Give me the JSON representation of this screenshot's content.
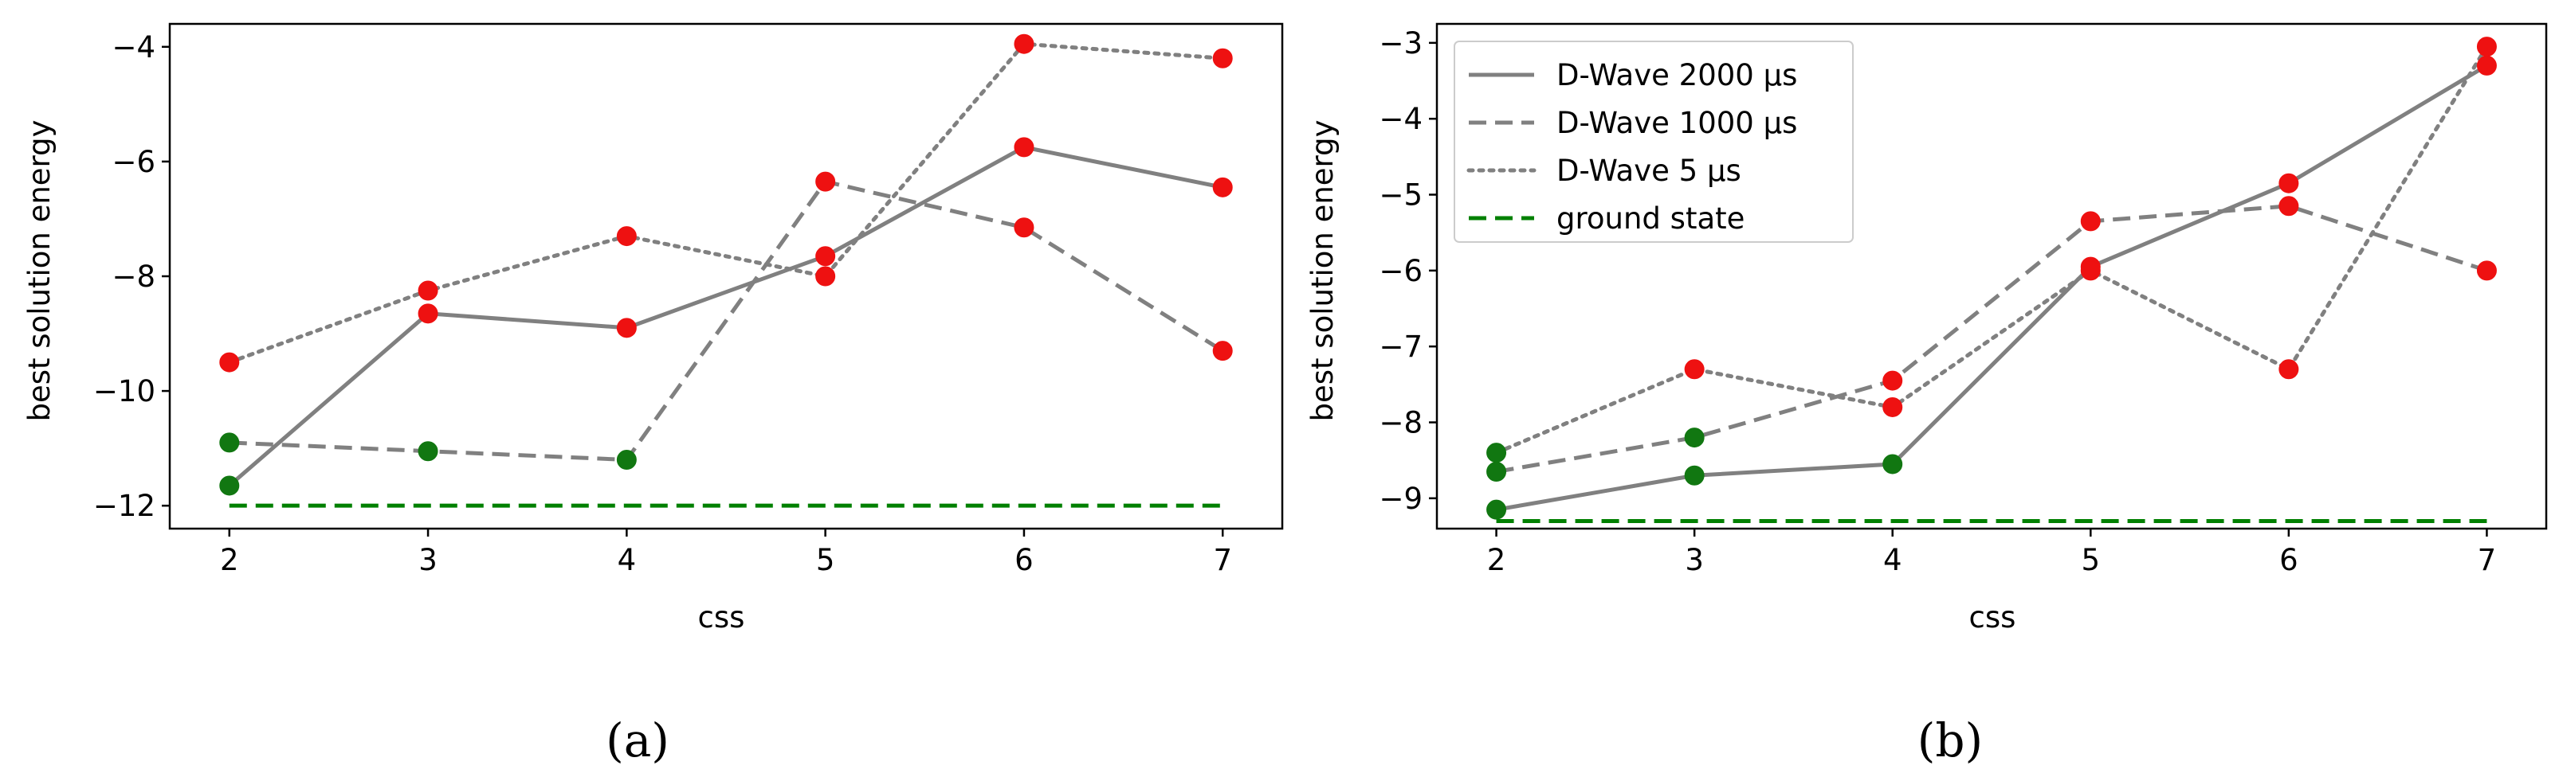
{
  "chart_data": [
    {
      "id": "a",
      "type": "line",
      "caption": "(a)",
      "xlabel": "css",
      "ylabel": "best solution energy",
      "x": [
        2,
        3,
        4,
        5,
        6,
        7
      ],
      "xlim": [
        1.7,
        7.3
      ],
      "ylim": [
        -12.4,
        -3.6
      ],
      "xticks": [
        2,
        3,
        4,
        5,
        6,
        7
      ],
      "yticks": [
        -12,
        -10,
        -8,
        -6,
        -4
      ],
      "ground_state": -12,
      "series": [
        {
          "name": "D-Wave 2000 µs",
          "style": "solid",
          "values": [
            -11.65,
            -8.65,
            -8.9,
            -7.65,
            -5.75,
            -6.45
          ],
          "markers": [
            "green",
            "red",
            "red",
            "red",
            "red",
            "red"
          ]
        },
        {
          "name": "D-Wave 1000 µs",
          "style": "dashed",
          "values": [
            -10.9,
            -11.05,
            -11.2,
            -6.35,
            -7.15,
            -9.3
          ],
          "markers": [
            "green",
            "green",
            "green",
            "red",
            "red",
            "red"
          ]
        },
        {
          "name": "D-Wave 5 µs",
          "style": "dotted",
          "values": [
            -9.5,
            -8.25,
            -7.3,
            -8.0,
            -3.95,
            -4.2
          ],
          "markers": [
            "red",
            "red",
            "red",
            "red",
            "red",
            "red"
          ]
        }
      ]
    },
    {
      "id": "b",
      "type": "line",
      "caption": "(b)",
      "xlabel": "css",
      "ylabel": "best solution energy",
      "x": [
        2,
        3,
        4,
        5,
        6,
        7
      ],
      "xlim": [
        1.7,
        7.3
      ],
      "ylim": [
        -9.4,
        -2.75
      ],
      "xticks": [
        2,
        3,
        4,
        5,
        6,
        7
      ],
      "yticks": [
        -9,
        -8,
        -7,
        -6,
        -5,
        -4,
        -3
      ],
      "ground_state": -9.3,
      "legend": {
        "position": "top-left",
        "entries": [
          {
            "label": "D-Wave 2000 µs",
            "style": "solid",
            "color": "#808080"
          },
          {
            "label": "D-Wave 1000 µs",
            "style": "dashed",
            "color": "#808080"
          },
          {
            "label": "D-Wave 5 µs",
            "style": "dotted",
            "color": "#808080"
          },
          {
            "label": "ground state",
            "style": "dashed",
            "color": "#008000"
          }
        ]
      },
      "series": [
        {
          "name": "D-Wave 2000 µs",
          "style": "solid",
          "values": [
            -9.15,
            -8.7,
            -8.55,
            -5.95,
            -4.85,
            -3.3
          ],
          "markers": [
            "green",
            "green",
            "green",
            "red",
            "red",
            "red"
          ]
        },
        {
          "name": "D-Wave 1000 µs",
          "style": "dashed",
          "values": [
            -8.65,
            -8.2,
            -7.45,
            -5.35,
            -5.15,
            -6.0
          ],
          "markers": [
            "green",
            "green",
            "red",
            "red",
            "red",
            "red"
          ]
        },
        {
          "name": "D-Wave 5 µs",
          "style": "dotted",
          "values": [
            -8.4,
            -7.3,
            -7.8,
            -6.0,
            -7.3,
            -3.05
          ],
          "markers": [
            "green",
            "red",
            "red",
            "red",
            "red",
            "red"
          ]
        }
      ]
    }
  ],
  "colors": {
    "series_line": "#808080",
    "ground_state": "#008000",
    "marker_red": "#ee1111",
    "marker_green": "#117711"
  }
}
